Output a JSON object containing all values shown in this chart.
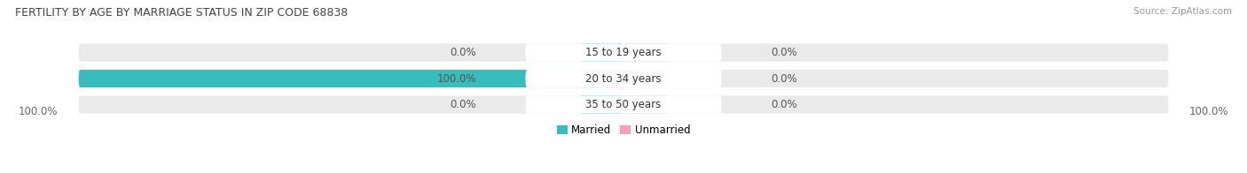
{
  "title": "FERTILITY BY AGE BY MARRIAGE STATUS IN ZIP CODE 68838",
  "source": "Source: ZipAtlas.com",
  "categories": [
    "15 to 19 years",
    "20 to 34 years",
    "35 to 50 years"
  ],
  "married_values": [
    0.0,
    100.0,
    0.0
  ],
  "unmarried_values": [
    0.0,
    0.0,
    0.0
  ],
  "married_color": "#39bcbc",
  "unmarried_color": "#f5a0b5",
  "bar_bg_color": "#e0e0e0",
  "bar_bg_color2": "#eaeaea",
  "figsize": [
    14.06,
    1.96
  ],
  "dpi": 100,
  "title_fontsize": 9.0,
  "label_fontsize": 8.5,
  "value_fontsize": 8.5,
  "tick_fontsize": 8.5,
  "legend_fontsize": 8.5,
  "source_fontsize": 7.5,
  "left_married_labels": [
    "0.0%",
    "100.0%",
    "0.0%"
  ],
  "right_unmarried_labels": [
    "0.0%",
    "0.0%",
    "0.0%"
  ],
  "axis_label_left": "100.0%",
  "axis_label_right": "100.0%",
  "bg_color": "#ffffff",
  "center_label_color": "#ffffff",
  "value_color": "#555555"
}
